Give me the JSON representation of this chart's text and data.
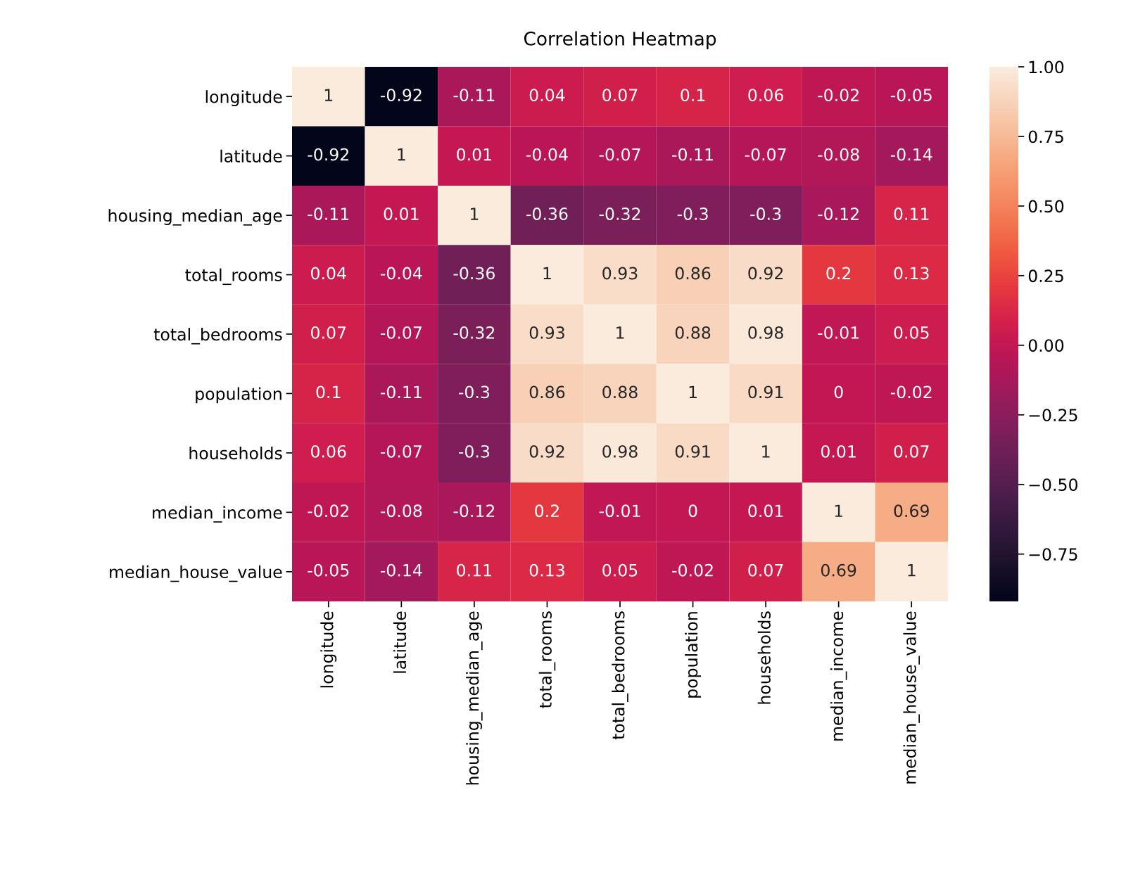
{
  "chart_data": {
    "type": "heatmap",
    "title": "Correlation Heatmap",
    "categories": [
      "longitude",
      "latitude",
      "housing_median_age",
      "total_rooms",
      "total_bedrooms",
      "population",
      "households",
      "median_income",
      "median_house_value"
    ],
    "y_categories": [
      "longitude",
      "latitude",
      "housing_median_age",
      "total_rooms",
      "total_bedrooms",
      "population",
      "households",
      "median_income",
      "median_house_value"
    ],
    "cells": [
      [
        1,
        -0.92,
        -0.11,
        0.04,
        0.07,
        0.1,
        0.06,
        -0.02,
        -0.05
      ],
      [
        -0.92,
        1,
        0.01,
        -0.04,
        -0.07,
        -0.11,
        -0.07,
        -0.08,
        -0.14
      ],
      [
        -0.11,
        0.01,
        1,
        -0.36,
        -0.32,
        -0.3,
        -0.3,
        -0.12,
        0.11
      ],
      [
        0.04,
        -0.04,
        -0.36,
        1,
        0.93,
        0.86,
        0.92,
        0.2,
        0.13
      ],
      [
        0.07,
        -0.07,
        -0.32,
        0.93,
        1,
        0.88,
        0.98,
        -0.01,
        0.05
      ],
      [
        0.1,
        -0.11,
        -0.3,
        0.86,
        0.88,
        1,
        0.91,
        0,
        -0.02
      ],
      [
        0.06,
        -0.07,
        -0.3,
        0.92,
        0.98,
        0.91,
        1,
        0.01,
        0.07
      ],
      [
        -0.02,
        -0.08,
        -0.12,
        0.2,
        -0.01,
        0,
        0.01,
        1,
        0.69
      ],
      [
        -0.05,
        -0.14,
        0.11,
        0.13,
        0.05,
        -0.02,
        0.07,
        0.69,
        1
      ]
    ],
    "clim": [
      -0.92,
      1
    ],
    "cticks": [
      {
        "value": -0.75,
        "label": "−0.75"
      },
      {
        "value": -0.5,
        "label": "−0.50"
      },
      {
        "value": -0.25,
        "label": "−0.25"
      },
      {
        "value": 0,
        "label": "0.00"
      },
      {
        "value": 0.25,
        "label": "0.25"
      },
      {
        "value": 0.5,
        "label": "0.50"
      },
      {
        "value": 0.75,
        "label": "0.75"
      },
      {
        "value": 1,
        "label": "1.00"
      }
    ],
    "data_labels": true
  }
}
